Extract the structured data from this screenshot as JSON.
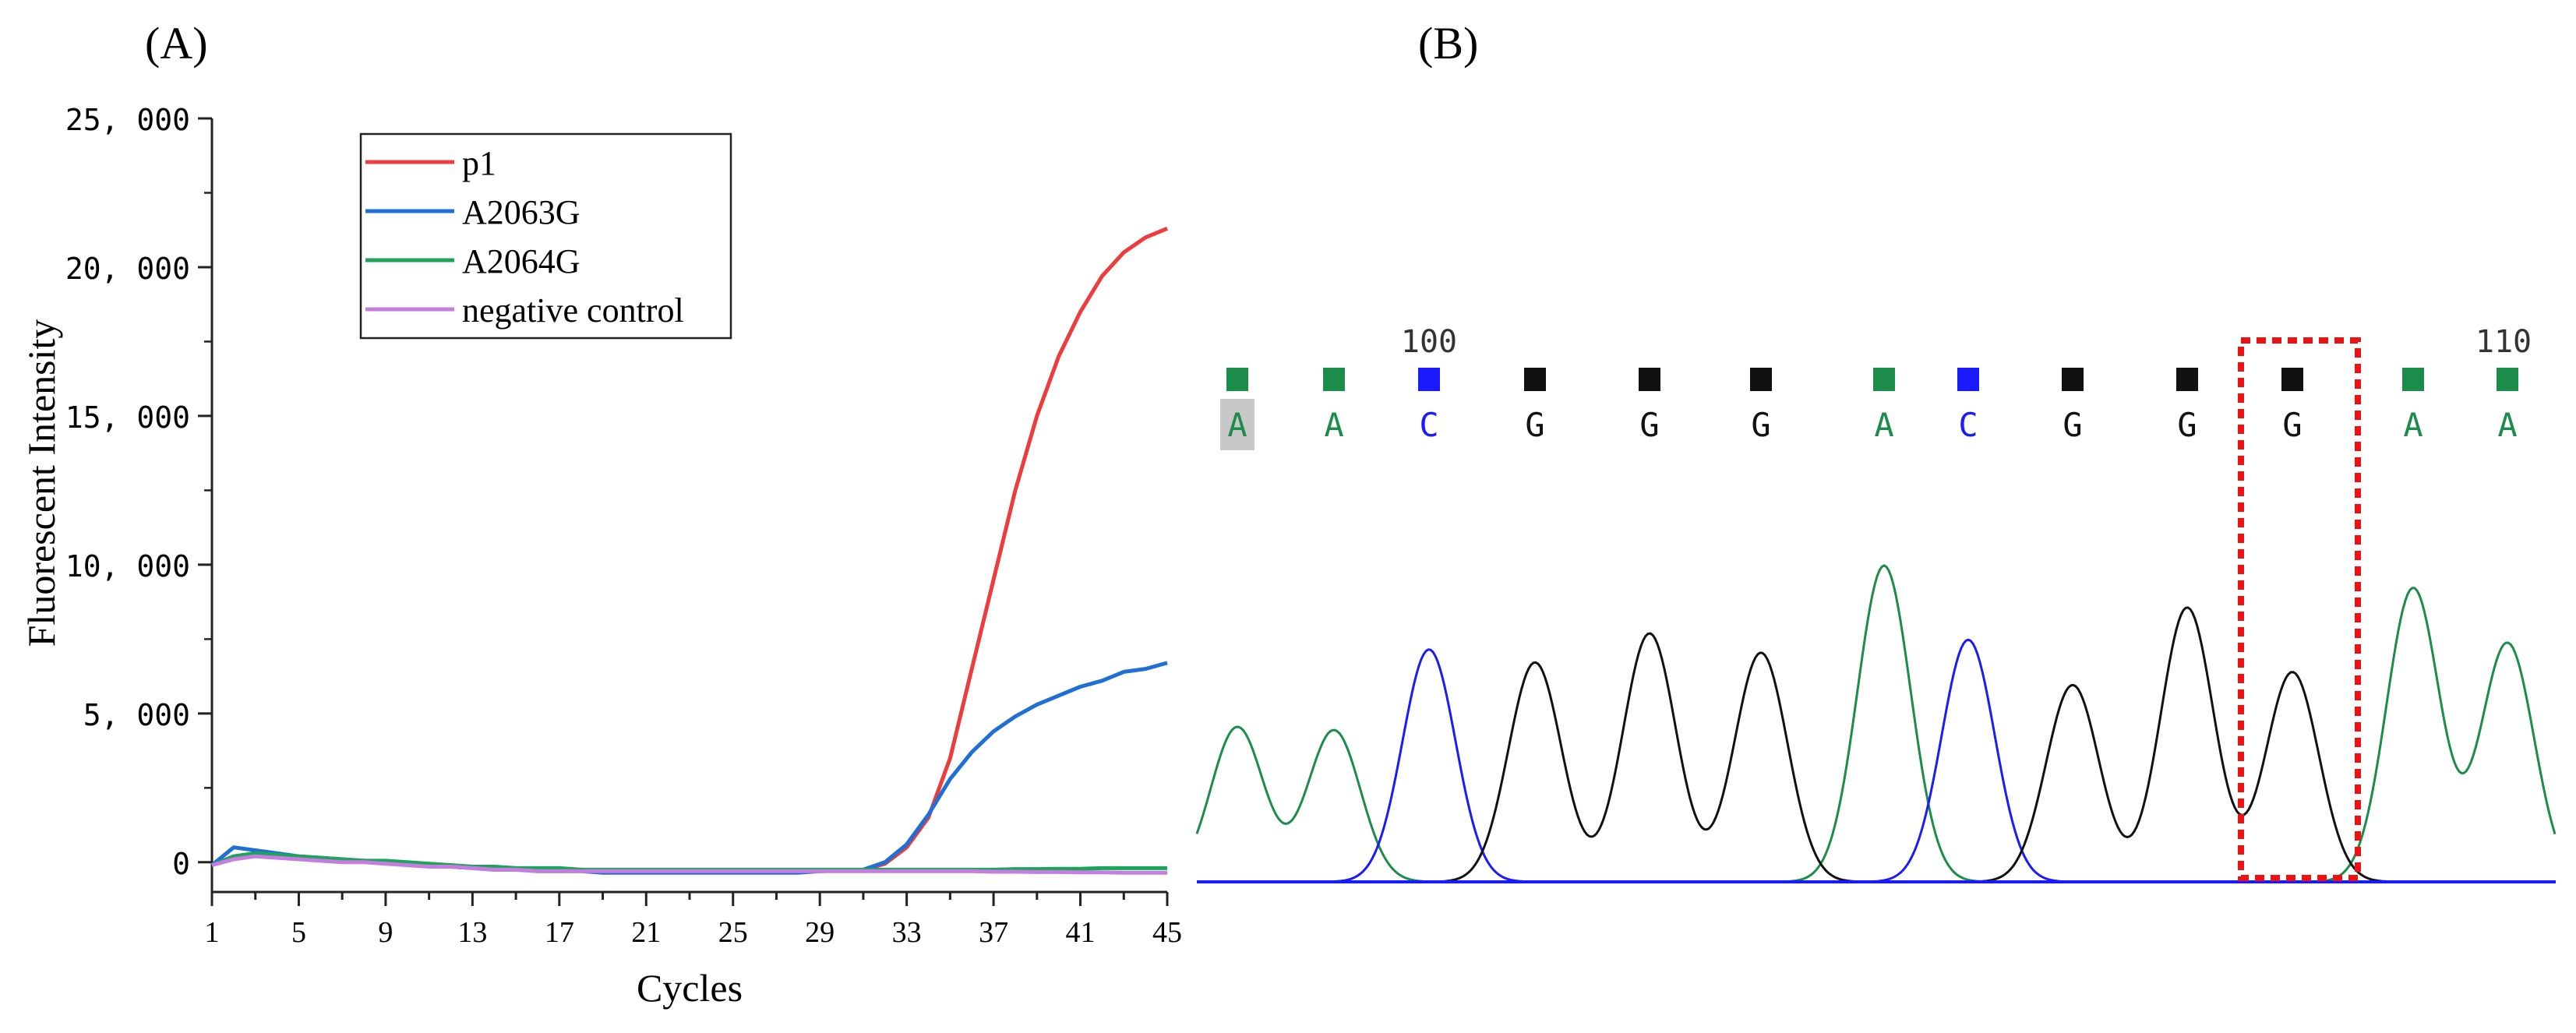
{
  "chart_data": [
    {
      "type": "line",
      "panel_label": "(A)",
      "xlabel": "Cycles",
      "ylabel": "Fluorescent Intensity",
      "xlim": [
        1,
        45
      ],
      "ylim": [
        -1000,
        25000
      ],
      "x_ticks": [
        1,
        5,
        9,
        13,
        17,
        21,
        25,
        29,
        33,
        37,
        41,
        45
      ],
      "y_ticks": [
        0,
        5000,
        10000,
        15000,
        20000,
        25000
      ],
      "y_tick_labels": [
        "0",
        "5, 000",
        "10, 000",
        "15, 000",
        "20, 000",
        "25, 000"
      ],
      "legend_position": "top-left",
      "grid": false,
      "x": [
        1,
        2,
        3,
        4,
        5,
        6,
        7,
        8,
        9,
        10,
        11,
        12,
        13,
        14,
        15,
        16,
        17,
        18,
        19,
        20,
        21,
        22,
        23,
        24,
        25,
        26,
        27,
        28,
        29,
        30,
        31,
        32,
        33,
        34,
        35,
        36,
        37,
        38,
        39,
        40,
        41,
        42,
        43,
        44,
        45
      ],
      "series": [
        {
          "name": "p1",
          "color": "#ee3b3b",
          "values": [
            -100,
            200,
            300,
            250,
            150,
            100,
            50,
            50,
            0,
            -50,
            -50,
            -100,
            -150,
            -200,
            -200,
            -250,
            -250,
            -250,
            -300,
            -300,
            -300,
            -300,
            -300,
            -300,
            -300,
            -300,
            -300,
            -300,
            -300,
            -280,
            -250,
            -50,
            500,
            1500,
            3500,
            6500,
            9500,
            12500,
            15000,
            17000,
            18500,
            19700,
            20500,
            21000,
            21300
          ]
        },
        {
          "name": "A2063G",
          "color": "#1f6fd6",
          "values": [
            -100,
            500,
            400,
            300,
            200,
            150,
            100,
            50,
            0,
            -50,
            -100,
            -150,
            -200,
            -250,
            -250,
            -300,
            -300,
            -300,
            -350,
            -350,
            -350,
            -350,
            -350,
            -350,
            -350,
            -350,
            -350,
            -350,
            -300,
            -280,
            -250,
            0,
            600,
            1600,
            2800,
            3700,
            4400,
            4900,
            5300,
            5600,
            5900,
            6100,
            6400,
            6500,
            6700
          ]
        },
        {
          "name": "A2064G",
          "color": "#1aa55a",
          "values": [
            -100,
            200,
            300,
            250,
            200,
            150,
            100,
            50,
            50,
            0,
            -50,
            -100,
            -150,
            -150,
            -200,
            -200,
            -200,
            -250,
            -250,
            -250,
            -250,
            -250,
            -250,
            -250,
            -250,
            -250,
            -250,
            -250,
            -250,
            -250,
            -250,
            -250,
            -250,
            -250,
            -250,
            -250,
            -250,
            -230,
            -230,
            -220,
            -220,
            -200,
            -200,
            -200,
            -200
          ]
        },
        {
          "name": "negative control",
          "color": "#c77de0",
          "values": [
            -100,
            100,
            200,
            150,
            100,
            50,
            0,
            0,
            -50,
            -100,
            -150,
            -150,
            -200,
            -250,
            -250,
            -300,
            -300,
            -300,
            -300,
            -300,
            -300,
            -300,
            -300,
            -300,
            -300,
            -300,
            -300,
            -300,
            -300,
            -300,
            -300,
            -300,
            -300,
            -300,
            -300,
            -300,
            -320,
            -320,
            -330,
            -330,
            -340,
            -340,
            -350,
            -350,
            -350
          ]
        }
      ]
    },
    {
      "type": "line",
      "panel_label": "(B)",
      "position_labels": [
        "100",
        "110"
      ],
      "bases": [
        "A",
        "A",
        "C",
        "G",
        "G",
        "G",
        "A",
        "C",
        "G",
        "G",
        "G",
        "A",
        "A"
      ],
      "base_colors": {
        "A": "#1b8c4a",
        "C": "#1a1aff",
        "G": "#111111"
      },
      "peak_heights": [
        4800,
        4700,
        7200,
        6800,
        7700,
        7100,
        9800,
        7500,
        6100,
        8500,
        6500,
        9100,
        7400
      ],
      "highlighted_base_index": 10,
      "highlight_color": "#ee1111"
    }
  ]
}
